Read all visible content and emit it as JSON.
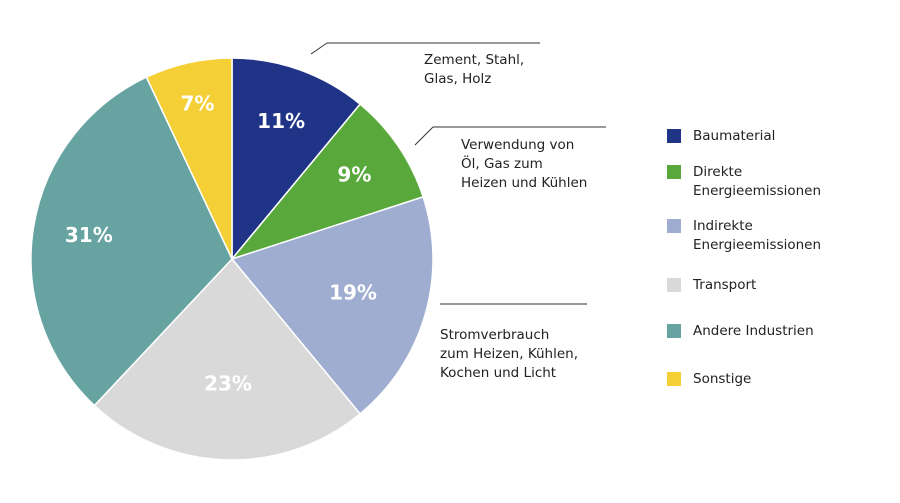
{
  "chart_data": {
    "type": "pie",
    "title": "",
    "categories": [
      "Baumaterial",
      "Direkte Energieemissionen",
      "Indirekte Energieemissionen",
      "Transport",
      "Andere Industrien",
      "Sonstige"
    ],
    "values": [
      11,
      9,
      19,
      23,
      31,
      7
    ],
    "value_labels": [
      "11%",
      "9%",
      "19%",
      "23%",
      "31%",
      "7%"
    ],
    "colors": [
      "#1f3487",
      "#59a83b",
      "#9fadd0",
      "#d9d9d9",
      "#67a3a1",
      "#f4cf35"
    ],
    "start": "12 o'clock, clockwise",
    "legend_position": "right",
    "annotations": [
      {
        "target": "Baumaterial",
        "text": "Zement, Stahl,\nGlas, Holz"
      },
      {
        "target": "Direkte Energieemissionen",
        "text": "Verwendung von\nÖl, Gas zum\nHeizen und Kühlen"
      },
      {
        "target": "Indirekte Energieemissionen",
        "text": "Stromverbrauch\nzum Heizen, Kühlen,\nKochen und Licht"
      }
    ]
  },
  "legend": {
    "items": [
      {
        "label": "Baumaterial",
        "color": "#1f3487"
      },
      {
        "label": "Direkte\nEnergieemissionen",
        "color": "#59a83b"
      },
      {
        "label": "Indirekte\nEnergieemissionen",
        "color": "#9fadd0"
      },
      {
        "label": "Transport",
        "color": "#d9d9d9"
      },
      {
        "label": "Andere Industrien",
        "color": "#67a3a1"
      },
      {
        "label": "Sonstige",
        "color": "#f4cf35"
      }
    ]
  }
}
